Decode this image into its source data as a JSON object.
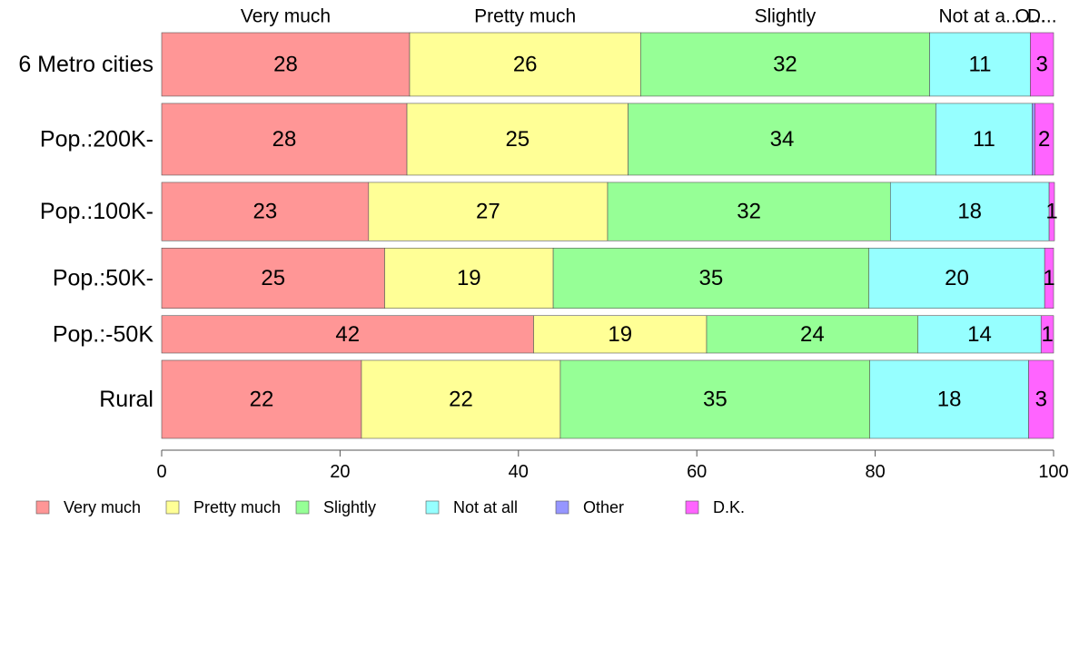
{
  "chart_data": {
    "type": "bar",
    "orientation": "horizontal",
    "stacked": true,
    "categories": [
      "6 Metro cities",
      "Pop.:200K-",
      "Pop.:100K-",
      "Pop.:50K-",
      "Pop.:-50K",
      "Rural"
    ],
    "series": [
      {
        "name": "Very much",
        "color": "#FF9696",
        "values": [
          27.8,
          27.5,
          23.2,
          25.0,
          41.7,
          22.4
        ]
      },
      {
        "name": "Pretty much",
        "color": "#FFFF96",
        "values": [
          25.9,
          24.8,
          26.8,
          18.9,
          19.4,
          22.3
        ]
      },
      {
        "name": "Slightly",
        "color": "#96FF96",
        "values": [
          32.4,
          34.5,
          31.7,
          35.4,
          23.7,
          34.7
        ]
      },
      {
        "name": "Not at all",
        "color": "#96FFFF",
        "values": [
          11.3,
          10.8,
          17.8,
          19.7,
          13.8,
          17.8
        ]
      },
      {
        "name": "Other",
        "color": "#9696FF",
        "values": [
          0.0,
          0.3,
          0.0,
          0.0,
          0.0,
          0.0
        ]
      },
      {
        "name": "D.K.",
        "color": "#FF64FF",
        "values": [
          2.6,
          2.1,
          0.6,
          1.0,
          1.4,
          2.8
        ]
      }
    ],
    "segment_labels": [
      [
        "28",
        "26",
        "32",
        "11",
        "",
        "3"
      ],
      [
        "28",
        "25",
        "34",
        "11",
        "",
        "2"
      ],
      [
        "23",
        "27",
        "32",
        "18",
        "",
        "1"
      ],
      [
        "25",
        "19",
        "35",
        "20",
        "",
        "1"
      ],
      [
        "42",
        "19",
        "24",
        "14",
        "",
        "1"
      ],
      [
        "22",
        "22",
        "35",
        "18",
        "",
        "3"
      ]
    ],
    "row_weights": [
      1.0,
      1.13,
      0.92,
      0.95,
      0.59,
      1.23
    ],
    "top_labels": [
      "Very much",
      "Pretty much",
      "Slightly",
      "Not at a...",
      "O...",
      "D..."
    ],
    "xlim": [
      0,
      100
    ],
    "x_ticks": [
      0,
      20,
      40,
      60,
      80,
      100
    ],
    "x_tick_labels": [
      "0",
      "20",
      "40",
      "60",
      "80",
      "100"
    ],
    "title": "",
    "xlabel": "",
    "ylabel": "",
    "grid": false,
    "legend_position": "bottom-left",
    "legend": [
      "Very much",
      "Pretty much",
      "Slightly",
      "Not at all",
      "Other",
      "D.K."
    ]
  }
}
